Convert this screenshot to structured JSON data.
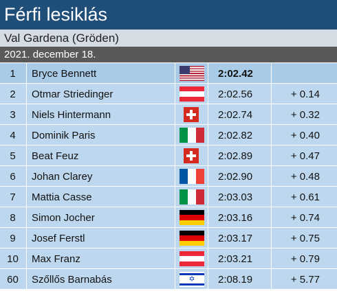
{
  "header": {
    "title": "Férfi lesiklás",
    "venue": "Val Gardena (Gröden)",
    "date": "2021. december 18."
  },
  "results": [
    {
      "pos": "1",
      "name": "Bryce Bennett",
      "flag": "usa-flag-icon",
      "time": "2:02.42",
      "gap": ""
    },
    {
      "pos": "2",
      "name": "Otmar Striedinger",
      "flag": "austria-flag-icon",
      "time": "2:02.56",
      "gap": "+ 0.14"
    },
    {
      "pos": "3",
      "name": "Niels Hintermann",
      "flag": "swiss-flag-icon",
      "time": "2:02.74",
      "gap": "+ 0.32"
    },
    {
      "pos": "4",
      "name": "Dominik Paris",
      "flag": "italy-flag-icon",
      "time": "2:02.82",
      "gap": "+ 0.40"
    },
    {
      "pos": "5",
      "name": "Beat Feuz",
      "flag": "swiss-flag-icon",
      "time": "2:02.89",
      "gap": "+ 0.47"
    },
    {
      "pos": "6",
      "name": "Johan Clarey",
      "flag": "france-flag-icon",
      "time": "2:02.90",
      "gap": "+ 0.48"
    },
    {
      "pos": "7",
      "name": "Mattia Casse",
      "flag": "italy-flag-icon",
      "time": "2:03.03",
      "gap": "+ 0.61"
    },
    {
      "pos": "8",
      "name": "Simon Jocher",
      "flag": "germany-flag-icon",
      "time": "2:03.16",
      "gap": "+ 0.74"
    },
    {
      "pos": "9",
      "name": "Josef Ferstl",
      "flag": "germany-flag-icon",
      "time": "2:03.17",
      "gap": "+ 0.75"
    },
    {
      "pos": "10",
      "name": "Max Franz",
      "flag": "austria-flag-icon",
      "time": "2:03.21",
      "gap": "+ 0.79"
    },
    {
      "pos": "60",
      "name": "Szőllős Barnabás",
      "flag": "israel-flag-icon",
      "time": "2:08.19",
      "gap": "+ 5.77"
    }
  ],
  "colors": {
    "title_bg": "#1f4e79",
    "subtitle_bg": "#d6dce4",
    "date_bg": "#595959",
    "row_bg": "#bdd7ee",
    "winner_row_bg": "#a9cbe8"
  }
}
